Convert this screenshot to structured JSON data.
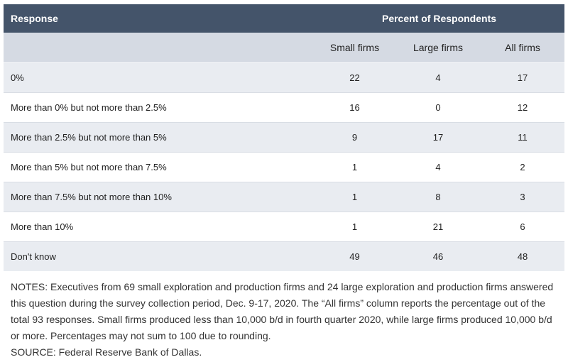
{
  "chart_data": {
    "type": "table",
    "header": {
      "response": "Response",
      "group": "Percent of Respondents"
    },
    "columns": [
      "Small firms",
      "Large firms",
      "All firms"
    ],
    "rows": [
      {
        "label": "0%",
        "values": [
          "22",
          "4",
          "17"
        ]
      },
      {
        "label": "More than 0% but not more than 2.5%",
        "values": [
          "16",
          "0",
          "12"
        ]
      },
      {
        "label": "More than 2.5% but not more than 5%",
        "values": [
          "9",
          "17",
          "11"
        ]
      },
      {
        "label": "More than 5% but not more than 7.5%",
        "values": [
          "1",
          "4",
          "2"
        ]
      },
      {
        "label": "More than 7.5% but not more than 10%",
        "values": [
          "1",
          "8",
          "3"
        ]
      },
      {
        "label": "More than 10%",
        "values": [
          "1",
          "21",
          "6"
        ]
      },
      {
        "label": "Don't know",
        "values": [
          "49",
          "46",
          "48"
        ]
      }
    ]
  },
  "notes": "NOTES: Executives from 69 small exploration and production firms and 24 large exploration and production firms answered this question during the survey collection period, Dec. 9-17, 2020. The “All firms” column reports the percentage out of the total 93 responses. Small firms produced less than 10,000 b/d in fourth quarter 2020, while large firms produced 10,000 b/d or more. Percentages may not sum to 100 due to rounding.",
  "source": "SOURCE: Federal Reserve Bank of Dallas."
}
